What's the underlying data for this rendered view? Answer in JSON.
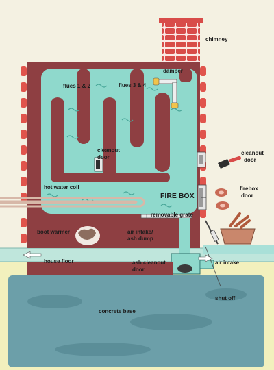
{
  "diagram": {
    "labels": {
      "chimney": "chimney",
      "damper": "damper",
      "flues_1_2": "flues 1 & 2",
      "flues_3_4": "flues 3 & 4",
      "cleanout_door_inner_1": "cleanout",
      "cleanout_door_inner_2": "door",
      "cleanout_door_outer_1": "cleanout",
      "cleanout_door_outer_2": "door",
      "hot_water_coil": "hot water coil",
      "fire_box": "FIRE BOX",
      "firebox_door_1": "firebox",
      "firebox_door_2": "door",
      "removable_grate": "removable grate",
      "boot_warmer": "boot warmer",
      "air_intake_ash_dump_1": "air intake/",
      "air_intake_ash_dump_2": "ash dump",
      "house_floor": "house floor",
      "ash_cleanout_door_1": "ash cleanout",
      "ash_cleanout_door_2": "door",
      "air_intake": "air intake",
      "shut_off": "shut off",
      "concrete_base": "concrete base"
    },
    "colors": {
      "background": "#f4f1e2",
      "brick": "#8e3f42",
      "chimney_brick": "#d84c49",
      "side_brick": "#e0544c",
      "water_teal": "#8fd9cc",
      "concrete": "#6c9fa9",
      "floor": "#bfe6dc",
      "ground": "#f2f0bd"
    }
  }
}
